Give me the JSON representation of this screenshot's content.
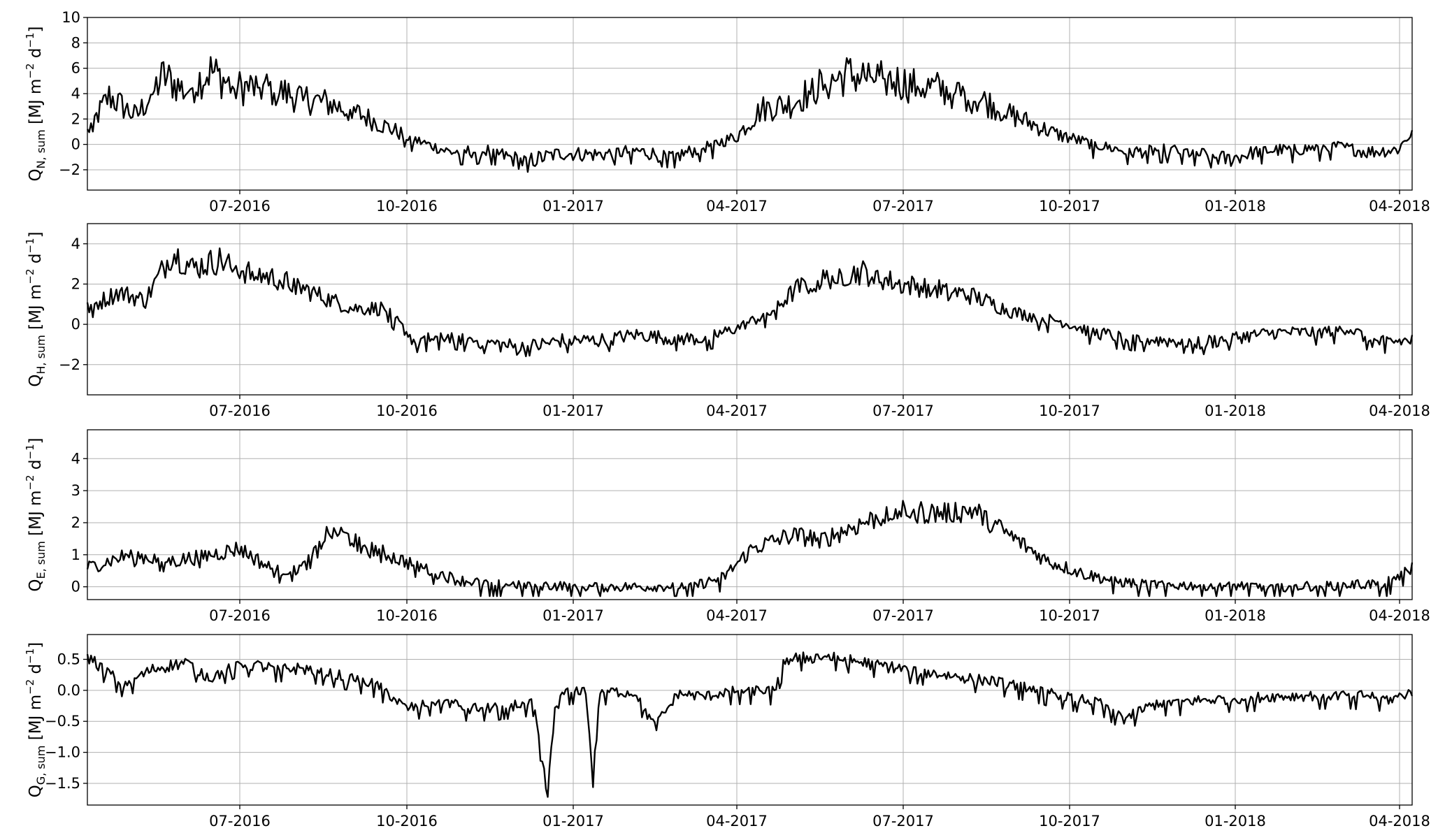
{
  "chart_data": [
    {
      "type": "line",
      "ylabel": {
        "symbol": "Q",
        "subscript": "N, sum",
        "unit": "[MJ m",
        "exp1": "−2",
        "unit2": " d",
        "exp2": "−1",
        "close": "]"
      },
      "ylim": [
        -3.6,
        10
      ],
      "yticks": [
        -2,
        0,
        2,
        4,
        6,
        8,
        10
      ],
      "xlim": [
        "2016-04-08",
        "2018-04-09"
      ],
      "xticks": [
        "07-2016",
        "10-2016",
        "01-2017",
        "04-2017",
        "07-2017",
        "10-2017",
        "01-2018",
        "04-2018"
      ],
      "grid": true,
      "series": [
        {
          "color": "#000000",
          "points": [
            [
              "2016-04-08",
              1.0
            ],
            [
              "2016-04-20",
              3.8
            ],
            [
              "2016-05-05",
              2.2
            ],
            [
              "2016-05-20",
              5.4
            ],
            [
              "2016-06-01",
              4.2
            ],
            [
              "2016-06-15",
              5.8
            ],
            [
              "2016-06-28",
              4.5
            ],
            [
              "2016-07-15",
              4.5
            ],
            [
              "2016-08-01",
              3.8
            ],
            [
              "2016-08-20",
              3.2
            ],
            [
              "2016-09-05",
              2.4
            ],
            [
              "2016-09-20",
              1.4
            ],
            [
              "2016-10-05",
              0.4
            ],
            [
              "2016-10-25",
              -0.6
            ],
            [
              "2016-11-15",
              -0.5
            ],
            [
              "2016-12-05",
              -1.4
            ],
            [
              "2016-12-25",
              -0.7
            ],
            [
              "2017-01-15",
              -0.8
            ],
            [
              "2017-02-05",
              -0.5
            ],
            [
              "2017-02-25",
              -1.0
            ],
            [
              "2017-03-15",
              -0.2
            ],
            [
              "2017-04-01",
              0.6
            ],
            [
              "2017-04-15",
              2.8
            ],
            [
              "2017-05-01",
              3.2
            ],
            [
              "2017-05-15",
              4.5
            ],
            [
              "2017-06-01",
              5.5
            ],
            [
              "2017-06-20",
              5.2
            ],
            [
              "2017-07-05",
              4.8
            ],
            [
              "2017-07-25",
              4.3
            ],
            [
              "2017-08-15",
              3.5
            ],
            [
              "2017-09-05",
              2.0
            ],
            [
              "2017-09-25",
              0.8
            ],
            [
              "2017-10-15",
              0.0
            ],
            [
              "2017-11-05",
              -0.6
            ],
            [
              "2017-11-25",
              -0.4
            ],
            [
              "2017-12-10",
              -0.7
            ],
            [
              "2017-12-28",
              -1.2
            ],
            [
              "2018-01-15",
              -0.5
            ],
            [
              "2018-02-05",
              -0.4
            ],
            [
              "2018-02-25",
              -0.1
            ],
            [
              "2018-03-15",
              -0.6
            ],
            [
              "2018-04-01",
              -0.4
            ],
            [
              "2018-04-09",
              1.0
            ]
          ]
        }
      ]
    },
    {
      "type": "line",
      "ylabel": {
        "symbol": "Q",
        "subscript": "H, sum",
        "unit": "[MJ m",
        "exp1": "−2",
        "unit2": " d",
        "exp2": "−1",
        "close": "]"
      },
      "ylim": [
        -3.5,
        5
      ],
      "yticks": [
        -2,
        0,
        2,
        4
      ],
      "xlim": [
        "2016-04-08",
        "2018-04-09"
      ],
      "xticks": [
        "07-2016",
        "10-2016",
        "01-2017",
        "04-2017",
        "07-2017",
        "10-2017",
        "01-2018",
        "04-2018"
      ],
      "grid": true,
      "series": [
        {
          "color": "#000000",
          "points": [
            [
              "2016-04-08",
              0.8
            ],
            [
              "2016-04-25",
              1.6
            ],
            [
              "2016-05-10",
              1.2
            ],
            [
              "2016-05-25",
              3.6
            ],
            [
              "2016-06-05",
              2.8
            ],
            [
              "2016-06-20",
              3.2
            ],
            [
              "2016-07-05",
              2.6
            ],
            [
              "2016-07-25",
              2.2
            ],
            [
              "2016-08-15",
              1.4
            ],
            [
              "2016-09-01",
              0.8
            ],
            [
              "2016-09-20",
              0.8
            ],
            [
              "2016-10-05",
              -0.8
            ],
            [
              "2016-10-25",
              -0.6
            ],
            [
              "2016-11-15",
              -0.9
            ],
            [
              "2016-12-05",
              -1.2
            ],
            [
              "2016-12-25",
              -0.8
            ],
            [
              "2017-01-15",
              -0.8
            ],
            [
              "2017-02-05",
              -0.5
            ],
            [
              "2017-02-25",
              -0.7
            ],
            [
              "2017-03-15",
              -0.7
            ],
            [
              "2017-04-01",
              -0.2
            ],
            [
              "2017-04-20",
              0.6
            ],
            [
              "2017-05-05",
              1.8
            ],
            [
              "2017-05-25",
              2.4
            ],
            [
              "2017-06-10",
              2.6
            ],
            [
              "2017-06-30",
              2.0
            ],
            [
              "2017-07-20",
              1.8
            ],
            [
              "2017-08-10",
              1.4
            ],
            [
              "2017-09-01",
              0.6
            ],
            [
              "2017-09-25",
              0.2
            ],
            [
              "2017-10-15",
              -0.4
            ],
            [
              "2017-11-05",
              -0.7
            ],
            [
              "2017-11-25",
              -0.8
            ],
            [
              "2017-12-15",
              -0.9
            ],
            [
              "2018-01-05",
              -0.6
            ],
            [
              "2018-01-25",
              -0.4
            ],
            [
              "2018-02-15",
              -0.4
            ],
            [
              "2018-03-05",
              -0.2
            ],
            [
              "2018-03-20",
              -0.9
            ],
            [
              "2018-04-09",
              -0.8
            ]
          ]
        }
      ]
    },
    {
      "type": "line",
      "ylabel": {
        "symbol": "Q",
        "subscript": "E, sum",
        "unit": "[MJ m",
        "exp1": "−2",
        "unit2": " d",
        "exp2": "−1",
        "close": "]"
      },
      "ylim": [
        -0.4,
        4.9
      ],
      "yticks": [
        0,
        1,
        2,
        3,
        4
      ],
      "xlim": [
        "2016-04-08",
        "2018-04-09"
      ],
      "xticks": [
        "07-2016",
        "10-2016",
        "01-2017",
        "04-2017",
        "07-2017",
        "10-2017",
        "01-2018",
        "04-2018"
      ],
      "grid": true,
      "series": [
        {
          "color": "#000000",
          "points": [
            [
              "2016-04-08",
              0.6
            ],
            [
              "2016-05-01",
              1.0
            ],
            [
              "2016-05-25",
              0.8
            ],
            [
              "2016-06-15",
              1.0
            ],
            [
              "2016-07-01",
              1.2
            ],
            [
              "2016-07-20",
              0.5
            ],
            [
              "2016-08-05",
              0.6
            ],
            [
              "2016-08-20",
              1.8
            ],
            [
              "2016-09-05",
              1.4
            ],
            [
              "2016-09-25",
              0.9
            ],
            [
              "2016-10-10",
              0.6
            ],
            [
              "2016-10-30",
              0.2
            ],
            [
              "2016-11-20",
              0.1
            ],
            [
              "2016-12-15",
              0.05
            ],
            [
              "2017-01-10",
              0.0
            ],
            [
              "2017-02-10",
              0.0
            ],
            [
              "2017-03-10",
              0.05
            ],
            [
              "2017-03-25",
              0.3
            ],
            [
              "2017-04-10",
              1.2
            ],
            [
              "2017-05-01",
              1.6
            ],
            [
              "2017-05-20",
              1.5
            ],
            [
              "2017-06-10",
              2.0
            ],
            [
              "2017-06-30",
              2.4
            ],
            [
              "2017-07-20",
              2.3
            ],
            [
              "2017-08-10",
              2.4
            ],
            [
              "2017-08-30",
              1.6
            ],
            [
              "2017-09-20",
              0.8
            ],
            [
              "2017-10-10",
              0.4
            ],
            [
              "2017-10-30",
              0.15
            ],
            [
              "2017-11-25",
              0.05
            ],
            [
              "2017-12-25",
              0.05
            ],
            [
              "2018-01-25",
              0.0
            ],
            [
              "2018-02-25",
              0.05
            ],
            [
              "2018-03-25",
              0.1
            ],
            [
              "2018-04-09",
              0.6
            ]
          ]
        }
      ]
    },
    {
      "type": "line",
      "ylabel": {
        "symbol": "Q",
        "subscript": "G, sum",
        "unit": "[MJ m",
        "exp1": "−2",
        "unit2": " d",
        "exp2": "−1",
        "close": "]"
      },
      "ylim": [
        -1.85,
        0.9
      ],
      "yticks": [
        -1.5,
        -1.0,
        -0.5,
        0.0,
        0.5
      ],
      "ytick_labels": [
        "−1.5",
        "−1.0",
        "−0.5",
        "0.0",
        "0.5"
      ],
      "xlim": [
        "2016-04-08",
        "2018-04-09"
      ],
      "xticks": [
        "07-2016",
        "10-2016",
        "01-2017",
        "04-2017",
        "07-2017",
        "10-2017",
        "01-2018",
        "04-2018"
      ],
      "grid": true,
      "series": [
        {
          "color": "#000000",
          "points": [
            [
              "2016-04-08",
              0.55
            ],
            [
              "2016-04-28",
              0.1
            ],
            [
              "2016-05-15",
              0.35
            ],
            [
              "2016-06-01",
              0.45
            ],
            [
              "2016-06-15",
              0.2
            ],
            [
              "2016-07-01",
              0.45
            ],
            [
              "2016-07-20",
              0.35
            ],
            [
              "2016-08-05",
              0.35
            ],
            [
              "2016-08-25",
              0.25
            ],
            [
              "2016-09-15",
              0.1
            ],
            [
              "2016-10-01",
              -0.3
            ],
            [
              "2016-10-20",
              -0.15
            ],
            [
              "2016-11-05",
              -0.3
            ],
            [
              "2016-11-25",
              -0.25
            ],
            [
              "2016-12-10",
              -0.2
            ],
            [
              "2016-12-18",
              -1.72
            ],
            [
              "2016-12-22",
              -0.3
            ],
            [
              "2016-12-28",
              0.0
            ],
            [
              "2017-01-08",
              0.0
            ],
            [
              "2017-01-12",
              -1.45
            ],
            [
              "2017-01-16",
              0.0
            ],
            [
              "2017-02-05",
              -0.05
            ],
            [
              "2017-02-15",
              -0.6
            ],
            [
              "2017-02-28",
              -0.05
            ],
            [
              "2017-03-15",
              -0.1
            ],
            [
              "2017-03-30",
              0.0
            ],
            [
              "2017-04-22",
              0.0
            ],
            [
              "2017-04-28",
              0.5
            ],
            [
              "2017-05-20",
              0.55
            ],
            [
              "2017-06-10",
              0.45
            ],
            [
              "2017-07-01",
              0.35
            ],
            [
              "2017-07-25",
              0.25
            ],
            [
              "2017-08-20",
              0.15
            ],
            [
              "2017-09-10",
              0.05
            ],
            [
              "2017-10-01",
              -0.1
            ],
            [
              "2017-10-20",
              -0.2
            ],
            [
              "2017-11-01",
              -0.45
            ],
            [
              "2017-11-20",
              -0.2
            ],
            [
              "2017-12-20",
              -0.15
            ],
            [
              "2018-01-20",
              -0.1
            ],
            [
              "2018-02-20",
              -0.08
            ],
            [
              "2018-03-15",
              -0.08
            ],
            [
              "2018-03-28",
              -0.15
            ],
            [
              "2018-04-09",
              -0.02
            ]
          ]
        }
      ]
    }
  ]
}
